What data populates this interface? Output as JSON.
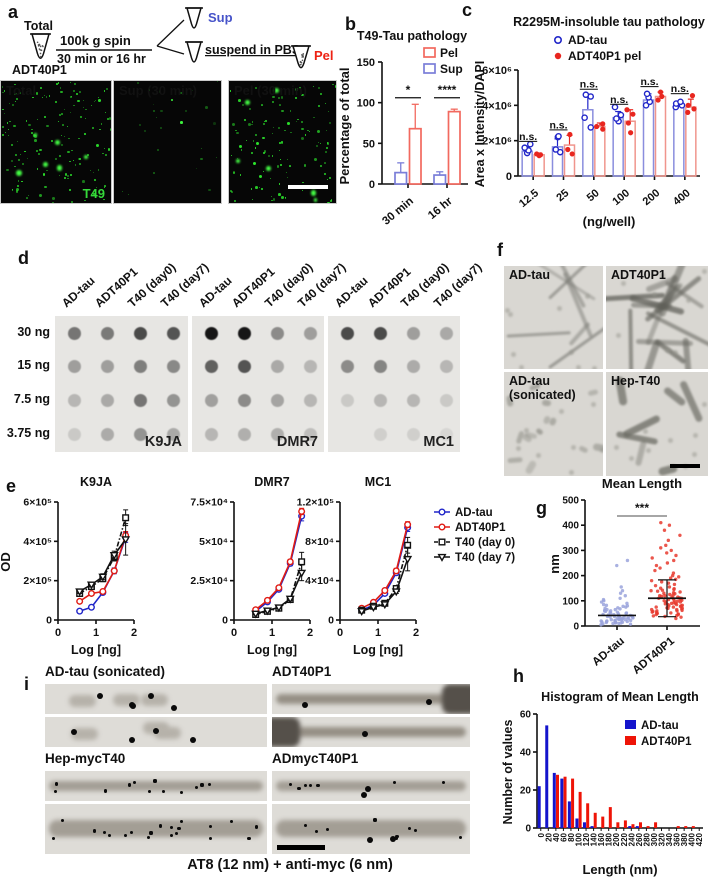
{
  "figure": {
    "panel_labels": {
      "a": "a",
      "b": "b",
      "c": "c",
      "d": "d",
      "e": "e",
      "f": "f",
      "g": "g",
      "h": "h",
      "i": "i"
    }
  },
  "panel_a": {
    "schematic": {
      "total_label": "Total",
      "tube_caption": "ADT40P1",
      "spin_line1": "100k g spin",
      "spin_line2": "30 min or 16 hr",
      "sup_label": "Sup",
      "sup_color": "#4653c9",
      "suspend_label": "suspend in PBS",
      "pel_label": "Pel",
      "pel_color": "#ed2213"
    },
    "images": [
      {
        "title": "Total",
        "title_color": "#ffffff",
        "specks": 150,
        "dim": false,
        "corner_label": "T49"
      },
      {
        "title": "Sup (30 min)",
        "title_color": "#4653c9",
        "specks": 26,
        "dim": true,
        "corner_label": ""
      },
      {
        "title": "Pel (30 min)",
        "title_color": "#ed2213",
        "specks": 125,
        "dim": false,
        "corner_label": ""
      }
    ]
  },
  "panel_d": {
    "row_labels": [
      "30 ng",
      "15 ng",
      "7.5 ng",
      "3.75 ng"
    ],
    "col_labels": [
      "AD-tau",
      "ADT40P1",
      "T40 (day0)",
      "T40 (day7)"
    ],
    "blots": [
      {
        "name": "K9JA",
        "intensities": [
          [
            0.52,
            0.5,
            0.72,
            0.68
          ],
          [
            0.33,
            0.33,
            0.48,
            0.43
          ],
          [
            0.22,
            0.28,
            0.52,
            0.38
          ],
          [
            0.13,
            0.27,
            0.38,
            0.28
          ]
        ]
      },
      {
        "name": "DMR7",
        "intensities": [
          [
            0.97,
            0.97,
            0.42,
            0.33
          ],
          [
            0.62,
            0.68,
            0.28,
            0.22
          ],
          [
            0.32,
            0.42,
            0.3,
            0.22
          ],
          [
            0.22,
            0.25,
            0.25,
            0.18
          ]
        ]
      },
      {
        "name": "MC1",
        "intensities": [
          [
            0.72,
            0.72,
            0.33,
            0.28
          ],
          [
            0.42,
            0.45,
            0.27,
            0.22
          ],
          [
            0.13,
            0.22,
            0.22,
            0.13
          ],
          [
            0.0,
            0.1,
            0.1,
            0.07
          ]
        ]
      }
    ]
  },
  "panel_f": {
    "images": [
      {
        "label": "AD-tau",
        "label2": "",
        "style": "long-thin"
      },
      {
        "label": "ADT40P1",
        "label2": "",
        "style": "dense"
      },
      {
        "label": "AD-tau",
        "label2": "(sonicated)",
        "style": "short"
      },
      {
        "label": "Hep-T40",
        "label2": "",
        "style": "rods",
        "scalebar": true
      }
    ]
  },
  "panel_i": {
    "caption": "AT8 (12 nm) + anti-myc (6 nm)",
    "groups": [
      {
        "label": "AD-tau (sonicated)",
        "style": "dots-only",
        "strips": [
          {
            "big": 5,
            "small": 0
          },
          {
            "big": 4,
            "small": 0
          }
        ]
      },
      {
        "label": "ADT40P1",
        "style": "fibril-big",
        "strips": [
          {
            "big": 2,
            "small": 0
          },
          {
            "big": 1,
            "small": 0
          }
        ]
      },
      {
        "label": "Hep-mycT40",
        "style": "fibril-small",
        "strips": [
          {
            "big": 0,
            "small": 12
          },
          {
            "big": 0,
            "small": 20
          }
        ]
      },
      {
        "label": "ADmycT40P1",
        "style": "fibril-mixed",
        "strips": [
          {
            "big": 2,
            "small": 7
          },
          {
            "big": 2,
            "small": 9
          }
        ]
      }
    ]
  },
  "chart_data": [
    {
      "id": "b",
      "type": "grouped-bar",
      "title": "T49-Tau pathology",
      "ylabel": "Percentage of total",
      "ylim": [
        0,
        150
      ],
      "yticks": [
        0,
        50,
        100,
        150
      ],
      "categories": [
        "30 min",
        "16 hr"
      ],
      "series": [
        {
          "name": "Sup",
          "color": "#7a7ed8",
          "values": [
            14,
            11
          ],
          "errors": [
            12,
            4
          ]
        },
        {
          "name": "Pel",
          "color": "#f2695f",
          "values": [
            68,
            89
          ],
          "errors": [
            30,
            3
          ]
        }
      ],
      "legend": [
        {
          "name": "Pel",
          "color": "#f2695f"
        },
        {
          "name": "Sup",
          "color": "#7a7ed8"
        }
      ],
      "significance": [
        "*",
        "****"
      ]
    },
    {
      "id": "c",
      "type": "grouped-bar-scatter",
      "title": "R2295M-insoluble tau pathology",
      "ylabel": "Area x Intensity/DAPI",
      "xlabel": "(ng/well)",
      "ylim": [
        0,
        6000000
      ],
      "ytick_vals": [
        0,
        2000000,
        4000000,
        6000000
      ],
      "ytick_labels": [
        "0",
        "2×10⁶",
        "4×10⁶",
        "6×10⁶"
      ],
      "categories": [
        "12.5",
        "25",
        "50",
        "100",
        "200",
        "400"
      ],
      "sig_labels": [
        "n.s.",
        "n.s.",
        "n.s.",
        "n.s.",
        "n.s.",
        "n.s."
      ],
      "series": [
        {
          "name": "AD-tau",
          "marker": "open",
          "color": "#2126c9",
          "bar_color": "#8a8ede",
          "values": [
            1400000,
            1650000,
            3750000,
            3300000,
            4300000,
            4000000
          ],
          "errors": [
            250000,
            450000,
            850000,
            350000,
            350000,
            150000
          ],
          "points": [
            [
              1300000,
              1450000,
              1600000,
              1800000
            ],
            [
              1350000,
              1500000,
              2200000,
              2250000
            ],
            [
              2750000,
              3300000,
              4500000,
              4600000
            ],
            [
              3100000,
              3250000,
              3450000,
              3900000
            ],
            [
              4000000,
              4200000,
              4450000,
              4650000
            ],
            [
              3900000,
              4000000,
              4100000,
              4200000
            ]
          ]
        },
        {
          "name": "ADT40P1 pel",
          "marker": "filled",
          "color": "#e8261f",
          "bar_color": "#f0958d",
          "values": [
            1200000,
            1750000,
            2800000,
            3100000,
            4500000,
            3900000
          ],
          "errors": [
            100000,
            550000,
            200000,
            650000,
            250000,
            450000
          ],
          "points": [
            [
              1150000,
              1200000,
              1250000
            ],
            [
              1250000,
              1500000,
              2350000
            ],
            [
              2650000,
              2800000,
              2950000
            ],
            [
              2450000,
              3000000,
              3500000,
              3750000
            ],
            [
              4300000,
              4500000,
              4750000
            ],
            [
              3600000,
              3800000,
              4000000,
              4550000
            ]
          ]
        }
      ]
    },
    {
      "id": "e-k9ja",
      "type": "line",
      "title": "K9JA",
      "ylabel": "OD",
      "xlabel": "Log [ng]",
      "xlim": [
        0,
        2
      ],
      "xticks": [
        0,
        1,
        2
      ],
      "ylim": [
        0,
        600000
      ],
      "ytick_vals": [
        0,
        200000,
        400000,
        600000
      ],
      "ytick_labels": [
        "0",
        "2×10⁵",
        "4×10⁵",
        "6×10⁵"
      ],
      "x": [
        0.57,
        0.88,
        1.18,
        1.48,
        1.78
      ],
      "series": [
        {
          "name": "AD-tau",
          "color": "#2126c9",
          "marker": "circle",
          "dash": "solid",
          "values": [
            45000,
            65000,
            140000,
            250000,
            420000
          ],
          "errors": [
            5000,
            6000,
            10000,
            15000,
            25000
          ]
        },
        {
          "name": "ADT40P1",
          "color": "#e01b14",
          "marker": "circle",
          "dash": "solid",
          "values": [
            95000,
            135000,
            145000,
            250000,
            430000
          ],
          "errors": [
            6000,
            8000,
            8000,
            12000,
            20000
          ]
        },
        {
          "name": "T40 (day 0)",
          "color": "#111111",
          "marker": "square",
          "dash": "dash",
          "values": [
            135000,
            170000,
            210000,
            320000,
            520000
          ],
          "errors": [
            15000,
            15000,
            15000,
            20000,
            40000
          ]
        },
        {
          "name": "T40 (day 7)",
          "color": "#111111",
          "marker": "triangle",
          "dash": "solid",
          "values": [
            145000,
            180000,
            220000,
            330000,
            410000
          ],
          "errors": [
            10000,
            12000,
            15000,
            20000,
            80000
          ]
        }
      ]
    },
    {
      "id": "e-dmr7",
      "type": "line",
      "title": "DMR7",
      "ylabel": "",
      "xlabel": "Log [ng]",
      "xlim": [
        0,
        2
      ],
      "xticks": [
        0,
        1,
        2
      ],
      "ylim": [
        0,
        75000
      ],
      "ytick_vals": [
        0,
        25000,
        50000,
        75000
      ],
      "ytick_labels": [
        "0",
        "2.5×10⁴",
        "5×10⁴",
        "7.5×10⁴"
      ],
      "x": [
        0.57,
        0.88,
        1.18,
        1.48,
        1.78
      ],
      "series": [
        {
          "name": "AD-tau",
          "color": "#2126c9",
          "marker": "circle",
          "dash": "solid",
          "values": [
            5500,
            11500,
            19500,
            36000,
            66000
          ],
          "errors": [
            500,
            800,
            1000,
            1500,
            3000
          ]
        },
        {
          "name": "ADT40P1",
          "color": "#e01b14",
          "marker": "circle",
          "dash": "solid",
          "values": [
            6500,
            12500,
            20500,
            37000,
            69000
          ],
          "errors": [
            500,
            800,
            1000,
            1500,
            2000
          ]
        },
        {
          "name": "T40 (day 0)",
          "color": "#111111",
          "marker": "square",
          "dash": "dash",
          "values": [
            3500,
            5500,
            7500,
            13000,
            37000
          ],
          "errors": [
            400,
            500,
            600,
            1200,
            6000
          ]
        },
        {
          "name": "T40 (day 7)",
          "color": "#111111",
          "marker": "triangle",
          "dash": "solid",
          "values": [
            4000,
            6000,
            8000,
            13500,
            30000
          ],
          "errors": [
            400,
            500,
            600,
            1200,
            5000
          ]
        }
      ]
    },
    {
      "id": "e-mc1",
      "type": "line",
      "title": "MC1",
      "ylabel": "",
      "xlabel": "Log [ng]",
      "legend_pos": "right",
      "xlim": [
        0,
        2
      ],
      "xticks": [
        0,
        1,
        2
      ],
      "ylim": [
        0,
        120000
      ],
      "ytick_vals": [
        0,
        40000,
        80000,
        120000
      ],
      "ytick_labels": [
        "0",
        "4×10⁴",
        "8×10⁴",
        "1.2×10⁵"
      ],
      "x": [
        0.57,
        0.88,
        1.18,
        1.48,
        1.78
      ],
      "series": [
        {
          "name": "AD-tau",
          "color": "#2126c9",
          "marker": "circle",
          "dash": "solid",
          "values": [
            10000,
            15000,
            27000,
            48000,
            94000
          ],
          "errors": [
            800,
            1000,
            1500,
            2500,
            4000
          ]
        },
        {
          "name": "ADT40P1",
          "color": "#e01b14",
          "marker": "circle",
          "dash": "solid",
          "values": [
            12000,
            18000,
            30000,
            50000,
            97000
          ],
          "errors": [
            800,
            1000,
            1500,
            2500,
            3000
          ]
        },
        {
          "name": "T40 (day 0)",
          "color": "#111111",
          "marker": "square",
          "dash": "dash",
          "values": [
            10000,
            14000,
            17000,
            32000,
            76000
          ],
          "errors": [
            600,
            800,
            1000,
            2000,
            8000
          ]
        },
        {
          "name": "T40 (day 7)",
          "color": "#111111",
          "marker": "triangle",
          "dash": "solid",
          "values": [
            9000,
            13000,
            16000,
            29000,
            62000
          ],
          "errors": [
            600,
            800,
            1000,
            2000,
            12000
          ]
        }
      ]
    },
    {
      "id": "g",
      "type": "scatter-column",
      "title": "Mean Length",
      "ylabel": "nm",
      "ylim": [
        0,
        500
      ],
      "yticks": [
        0,
        100,
        200,
        300,
        400,
        500
      ],
      "significance": "***",
      "groups": [
        {
          "name": "AD-tau",
          "color": "#9aa3dc",
          "mean": 42,
          "sd": 0,
          "values": [
            5,
            7,
            8,
            10,
            10,
            12,
            12,
            14,
            15,
            15,
            16,
            18,
            18,
            20,
            20,
            20,
            22,
            22,
            24,
            25,
            25,
            26,
            28,
            28,
            30,
            30,
            30,
            32,
            32,
            34,
            35,
            35,
            36,
            38,
            38,
            40,
            40,
            42,
            42,
            44,
            45,
            46,
            48,
            50,
            50,
            52,
            55,
            55,
            58,
            60,
            60,
            62,
            65,
            65,
            68,
            70,
            72,
            75,
            78,
            80,
            82,
            85,
            90,
            95,
            100,
            105,
            110,
            120,
            130,
            140,
            155,
            240,
            260
          ]
        },
        {
          "name": "ADT40P1",
          "color": "#e8392e",
          "mean": 110,
          "sd": 73,
          "values": [
            30,
            35,
            38,
            40,
            42,
            45,
            45,
            48,
            50,
            50,
            52,
            55,
            55,
            58,
            60,
            60,
            62,
            65,
            65,
            68,
            70,
            70,
            72,
            75,
            75,
            78,
            80,
            80,
            82,
            85,
            85,
            88,
            90,
            90,
            92,
            95,
            95,
            98,
            100,
            100,
            102,
            105,
            105,
            108,
            110,
            110,
            112,
            115,
            115,
            118,
            120,
            120,
            122,
            125,
            128,
            130,
            132,
            135,
            138,
            140,
            142,
            145,
            148,
            150,
            155,
            160,
            165,
            170,
            175,
            180,
            185,
            190,
            195,
            200,
            210,
            220,
            230,
            240,
            250,
            260,
            270,
            280,
            290,
            300,
            310,
            320,
            340,
            360,
            380,
            400,
            410
          ]
        }
      ]
    },
    {
      "id": "h",
      "type": "histogram",
      "title": "Histogram of Mean Length",
      "ylabel": "Number of values",
      "xlabel": "Length (nm)",
      "ylim": [
        0,
        60
      ],
      "yticks": [
        0,
        20,
        40,
        60
      ],
      "bin_labels": [
        "0",
        "20",
        "40",
        "60",
        "80",
        "100",
        "120",
        "140",
        "160",
        "180",
        "200",
        "220",
        "240",
        "260",
        "280",
        "300",
        "320",
        "340",
        "360",
        "380",
        "400",
        "420"
      ],
      "series": [
        {
          "name": "AD-tau",
          "color": "#1414cc",
          "values": [
            22,
            54,
            29,
            26,
            14,
            5,
            3,
            1,
            0,
            0,
            0,
            0,
            1,
            1,
            0,
            0,
            0,
            0,
            0,
            0,
            0,
            0
          ]
        },
        {
          "name": "ADT40P1",
          "color": "#ee1407",
          "values": [
            0,
            0,
            28,
            27,
            26,
            19,
            13,
            8,
            6,
            11,
            3,
            4,
            2,
            3,
            1,
            3,
            0,
            0,
            1,
            1,
            1,
            0
          ]
        }
      ]
    }
  ]
}
